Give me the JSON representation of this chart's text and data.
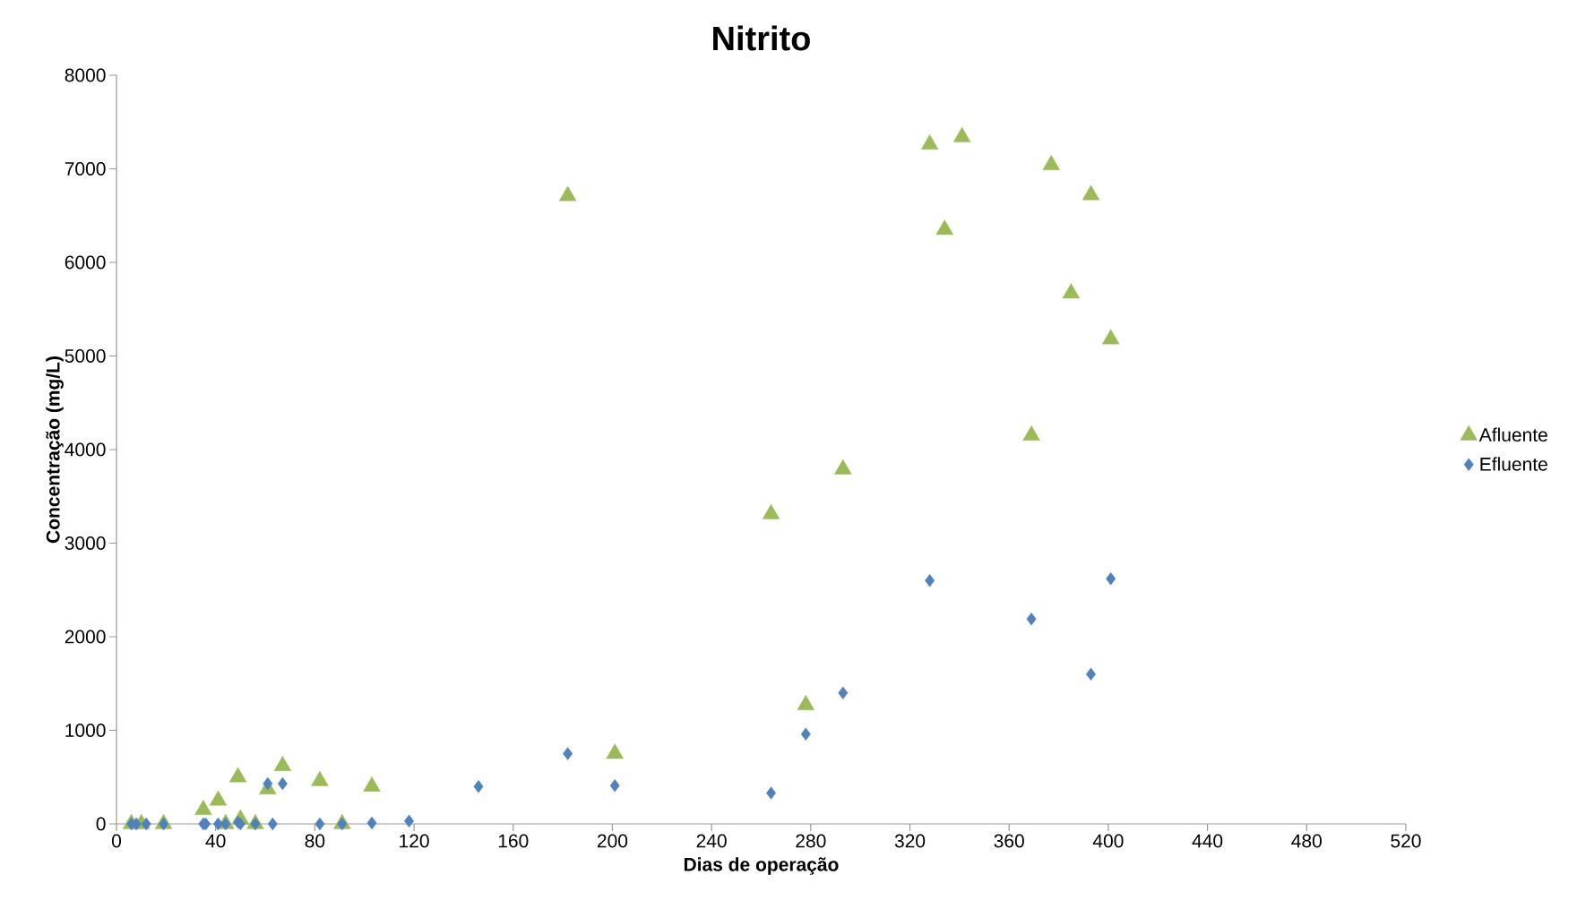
{
  "chart_data": {
    "type": "scatter",
    "title": "Nitrito",
    "xlabel": "Dias de operação",
    "ylabel": "Concentração (mg/L)",
    "xlim": [
      0,
      520
    ],
    "xticks": [
      0,
      40,
      80,
      120,
      160,
      200,
      240,
      280,
      320,
      360,
      400,
      440,
      480,
      520
    ],
    "ylim": [
      0,
      8000
    ],
    "yticks": [
      0,
      1000,
      2000,
      3000,
      4000,
      5000,
      6000,
      7000,
      8000
    ],
    "grid": false,
    "legend": "right",
    "series": [
      {
        "name": "Afluente",
        "color": "#9bbb59",
        "marker": "triangle",
        "x": [
          6,
          10,
          19,
          35,
          41,
          44,
          49,
          50,
          56,
          61,
          67,
          82,
          91,
          103,
          182,
          201,
          264,
          278,
          293,
          328,
          334,
          341,
          369,
          377,
          385,
          393,
          401
        ],
        "values": [
          0,
          0,
          0,
          150,
          250,
          0,
          500,
          50,
          0,
          370,
          620,
          460,
          0,
          400,
          6710,
          750,
          3310,
          1270,
          3790,
          7260,
          6350,
          7340,
          4150,
          7040,
          5670,
          6720,
          5180
        ]
      },
      {
        "name": "Efluente",
        "color": "#4f81bd",
        "marker": "diamond",
        "x": [
          6,
          8,
          12,
          19,
          35,
          36,
          41,
          44,
          49,
          50,
          56,
          61,
          63,
          67,
          82,
          91,
          103,
          118,
          146,
          182,
          201,
          264,
          278,
          293,
          328,
          369,
          393,
          401
        ],
        "values": [
          0,
          0,
          0,
          0,
          0,
          0,
          0,
          0,
          20,
          0,
          0,
          430,
          0,
          430,
          0,
          0,
          10,
          30,
          400,
          750,
          410,
          330,
          960,
          1400,
          2600,
          2190,
          1600,
          2620
        ]
      }
    ]
  }
}
